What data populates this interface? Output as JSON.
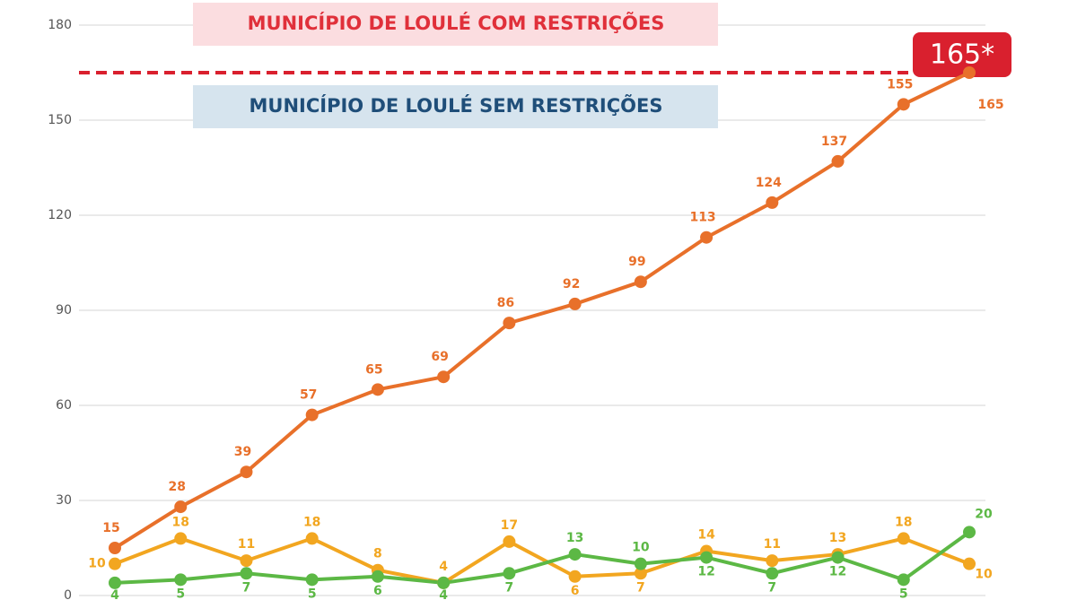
{
  "chart_data": {
    "type": "line",
    "ylim": [
      0,
      180
    ],
    "yticks": [
      0,
      30,
      60,
      90,
      120,
      150,
      180
    ],
    "grid": true,
    "threshold": {
      "value": 165,
      "label": "165*",
      "color": "#d9202e"
    },
    "above_label": "MUNICÍPIO DE LOULÉ COM RESTRIÇÕES",
    "below_label": "MUNICÍPIO DE LOULÉ SEM RESTRIÇÕES",
    "series": [
      {
        "color": "#e8702a",
        "values": [
          15,
          28,
          39,
          57,
          65,
          69,
          86,
          92,
          99,
          113,
          124,
          137,
          155,
          165
        ]
      },
      {
        "color": "#f2a620",
        "values": [
          10,
          18,
          11,
          18,
          8,
          4,
          17,
          6,
          7,
          14,
          11,
          13,
          18,
          10
        ]
      },
      {
        "color": "#5cb845",
        "values": [
          4,
          5,
          7,
          5,
          6,
          4,
          7,
          13,
          10,
          12,
          7,
          12,
          5,
          20
        ]
      }
    ]
  }
}
